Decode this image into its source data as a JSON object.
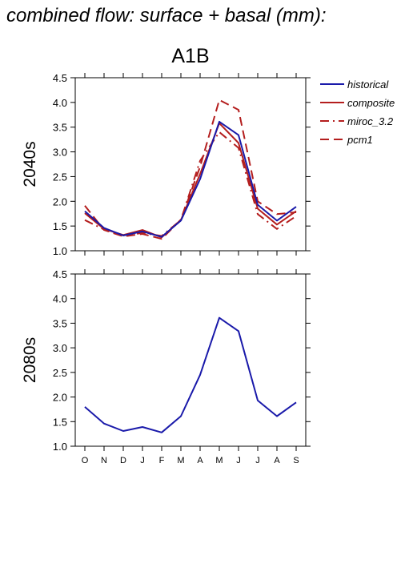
{
  "header": {
    "title": "combined flow: surface + basal (mm):"
  },
  "scenario_title": "A1B",
  "colors": {
    "historical": "#1a1aaa",
    "scenarios": "#b41e1e"
  },
  "legend": [
    {
      "label": "historical",
      "style": "solid",
      "color": "#1a1aaa"
    },
    {
      "label": "composite",
      "style": "solid",
      "color": "#b41e1e"
    },
    {
      "label": "miroc_3.2",
      "style": "dashdot",
      "color": "#b41e1e"
    },
    {
      "label": "pcm1",
      "style": "dashed",
      "color": "#b41e1e"
    }
  ],
  "chart_data": [
    {
      "type": "line",
      "row_label": "2040s",
      "categories": [
        "O",
        "N",
        "D",
        "J",
        "F",
        "M",
        "A",
        "M",
        "J",
        "J",
        "A",
        "S"
      ],
      "ylim": [
        1.0,
        4.5
      ],
      "y_ticks": [
        "1.0",
        "1.5",
        "2.0",
        "2.5",
        "3.0",
        "3.5",
        "4.0",
        "4.5"
      ],
      "series": [
        {
          "name": "historical",
          "style": "solid",
          "color": "#1a1aaa",
          "values": [
            1.8,
            1.46,
            1.31,
            1.39,
            1.28,
            1.61,
            2.45,
            3.61,
            3.34,
            1.93,
            1.61,
            1.89
          ]
        },
        {
          "name": "composite",
          "style": "solid",
          "color": "#b41e1e",
          "values": [
            1.76,
            1.44,
            1.32,
            1.42,
            1.27,
            1.62,
            2.55,
            3.58,
            3.18,
            1.85,
            1.53,
            1.8
          ]
        },
        {
          "name": "miroc_3.2",
          "style": "dashdot",
          "color": "#b41e1e",
          "values": [
            1.62,
            1.43,
            1.31,
            1.36,
            1.3,
            1.62,
            2.82,
            3.4,
            3.08,
            1.74,
            1.44,
            1.7
          ]
        },
        {
          "name": "pcm1",
          "style": "dashed",
          "color": "#b41e1e",
          "values": [
            1.91,
            1.42,
            1.29,
            1.34,
            1.24,
            1.63,
            2.7,
            4.05,
            3.85,
            2.0,
            1.74,
            1.78
          ]
        }
      ]
    },
    {
      "type": "line",
      "row_label": "2080s",
      "categories": [
        "O",
        "N",
        "D",
        "J",
        "F",
        "M",
        "A",
        "M",
        "J",
        "J",
        "A",
        "S"
      ],
      "ylim": [
        1.0,
        4.5
      ],
      "y_ticks": [
        "1.0",
        "1.5",
        "2.0",
        "2.5",
        "3.0",
        "3.5",
        "4.0",
        "4.5"
      ],
      "series": [
        {
          "name": "historical",
          "style": "solid",
          "color": "#1a1aaa",
          "values": [
            1.8,
            1.46,
            1.31,
            1.39,
            1.28,
            1.61,
            2.45,
            3.61,
            3.34,
            1.93,
            1.61,
            1.89
          ]
        }
      ]
    }
  ]
}
